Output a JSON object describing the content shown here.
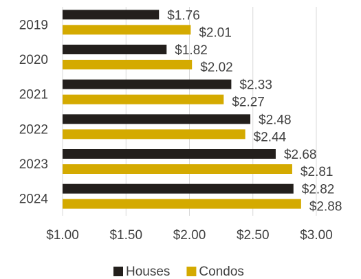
{
  "chart_data": {
    "type": "bar",
    "orientation": "horizontal",
    "categories": [
      "2019",
      "2020",
      "2021",
      "2022",
      "2023",
      "2024"
    ],
    "series": [
      {
        "name": "Houses",
        "color": "#231f1c",
        "values": [
          1.76,
          1.82,
          2.33,
          2.48,
          2.68,
          2.82
        ],
        "value_labels": [
          "$1.76",
          "$1.82",
          "$2.33",
          "$2.48",
          "$2.68",
          "$2.82"
        ]
      },
      {
        "name": "Condos",
        "color": "#d4aa00",
        "values": [
          2.01,
          2.02,
          2.27,
          2.44,
          2.81,
          2.88
        ],
        "value_labels": [
          "$2.01",
          "$2.02",
          "$2.27",
          "$2.44",
          "$2.81",
          "$2.88"
        ]
      }
    ],
    "xlim": [
      1,
      3
    ],
    "xticks": [
      {
        "value": 1,
        "label": "$1.00"
      },
      {
        "value": 1.5,
        "label": "$1.50"
      },
      {
        "value": 2,
        "label": "$2.00"
      },
      {
        "value": 2.5,
        "label": "$2.50"
      },
      {
        "value": 3,
        "label": "$3.00"
      }
    ],
    "grid": true,
    "legend": "bottom"
  }
}
